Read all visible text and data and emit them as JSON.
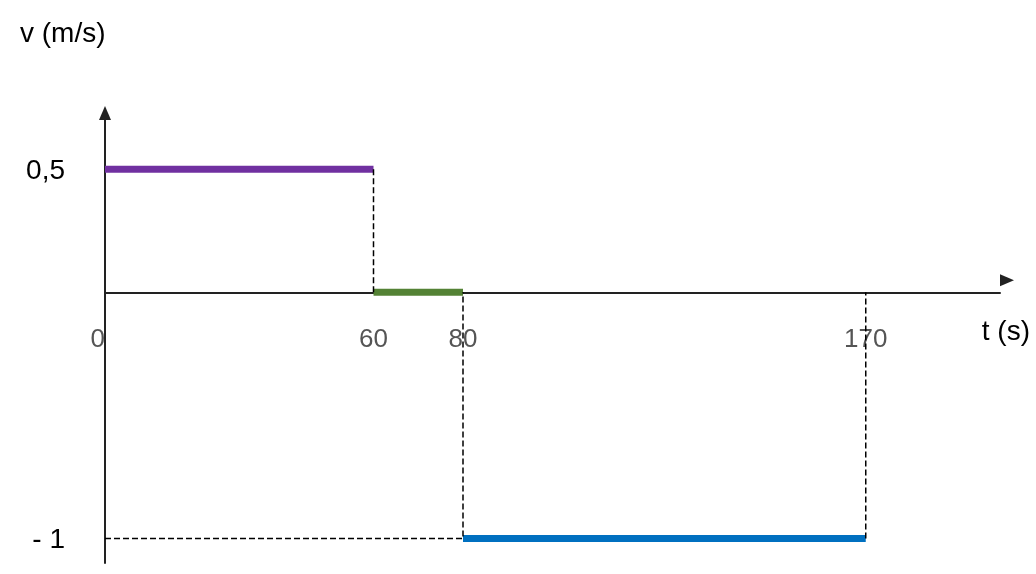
{
  "chart_data": {
    "type": "line",
    "xlabel": "t (s)",
    "ylabel": "v (m/s)",
    "xlim": [
      0,
      200
    ],
    "xticks": [
      0,
      60,
      80,
      170
    ],
    "ylim": [
      -1.1,
      0.7
    ],
    "yticks": [
      {
        "value": 0.5,
        "label": "0,5"
      },
      {
        "value": -1,
        "label": "- 1"
      }
    ],
    "grid": false,
    "marker": "none",
    "tick_labels": "xy",
    "series": [
      {
        "color": "#7030a0",
        "x": [
          0,
          60
        ],
        "values": [
          0.5,
          0.5
        ]
      },
      {
        "color": "#548235",
        "x": [
          60,
          80
        ],
        "values": [
          0,
          0
        ]
      },
      {
        "color": "#0070c0",
        "x": [
          80,
          170
        ],
        "values": [
          -1,
          -1
        ]
      },
      {
        "color": "#000000",
        "line_style": "dashed",
        "x": [
          60,
          60
        ],
        "values": [
          0.5,
          0
        ]
      },
      {
        "color": "#000000",
        "line_style": "dashed",
        "x": [
          0,
          80,
          80
        ],
        "values": [
          -1,
          -1,
          0
        ]
      },
      {
        "color": "#000000",
        "line_style": "dashed",
        "x": [
          170,
          170
        ],
        "values": [
          -1,
          0
        ]
      }
    ]
  }
}
